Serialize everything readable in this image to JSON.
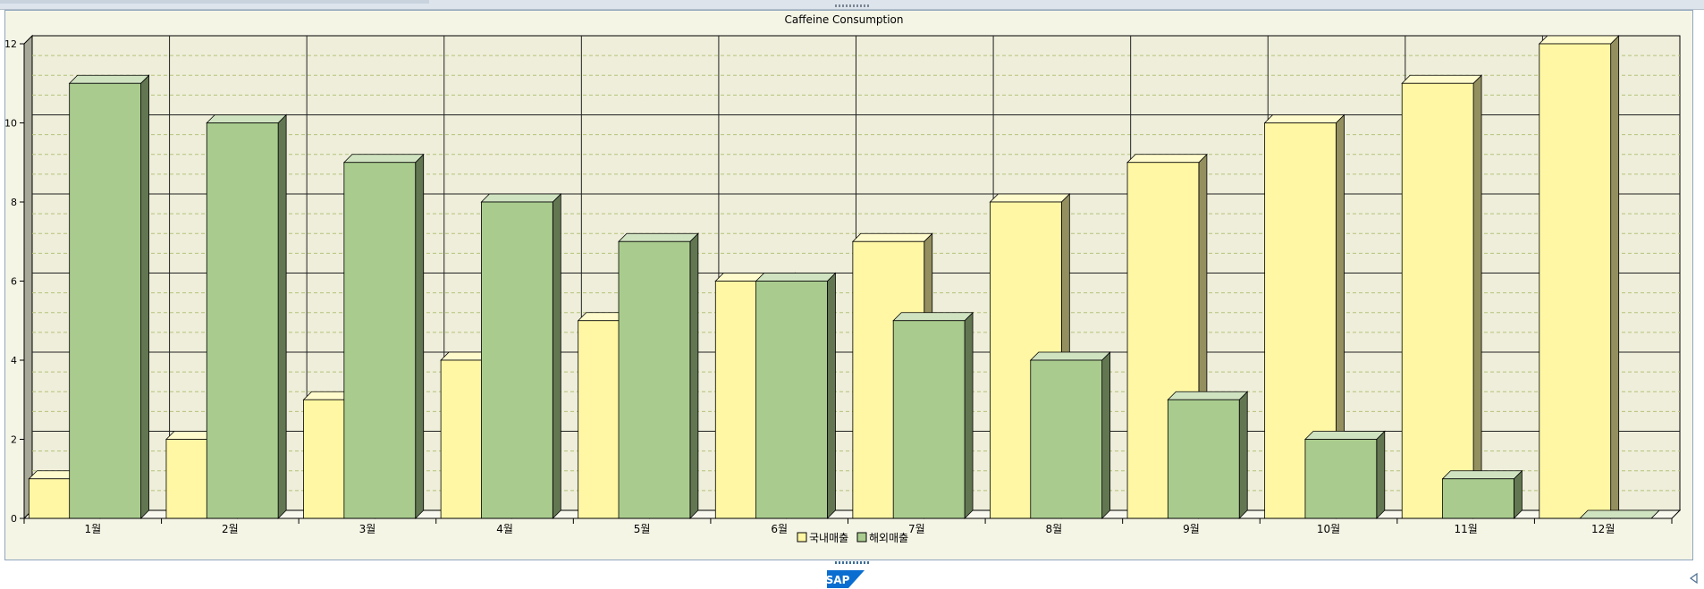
{
  "chart_data": {
    "type": "bar",
    "title": "Caffeine Consumption",
    "categories": [
      "1월",
      "2월",
      "3월",
      "4월",
      "5월",
      "6월",
      "7월",
      "8월",
      "9월",
      "10월",
      "11월",
      "12월"
    ],
    "series": [
      {
        "name": "국내매출",
        "color": "#fff7a3",
        "values": [
          1,
          2,
          3,
          4,
          5,
          6,
          7,
          8,
          9,
          10,
          11,
          12
        ]
      },
      {
        "name": "해외매출",
        "color": "#a9cc8e",
        "values": [
          11,
          10,
          9,
          8,
          7,
          6,
          5,
          4,
          3,
          2,
          1,
          0
        ]
      }
    ],
    "ylim": [
      0,
      12
    ],
    "yticks": [
      0,
      2,
      4,
      6,
      8,
      10,
      12
    ],
    "grid": true,
    "legend_position": "bottom-center",
    "xlabel": "",
    "ylabel": ""
  },
  "footer": {
    "logo_text": "SAP"
  },
  "icons": {
    "scroll": "triangle-left-icon",
    "grip": "drag-handle-icon"
  }
}
